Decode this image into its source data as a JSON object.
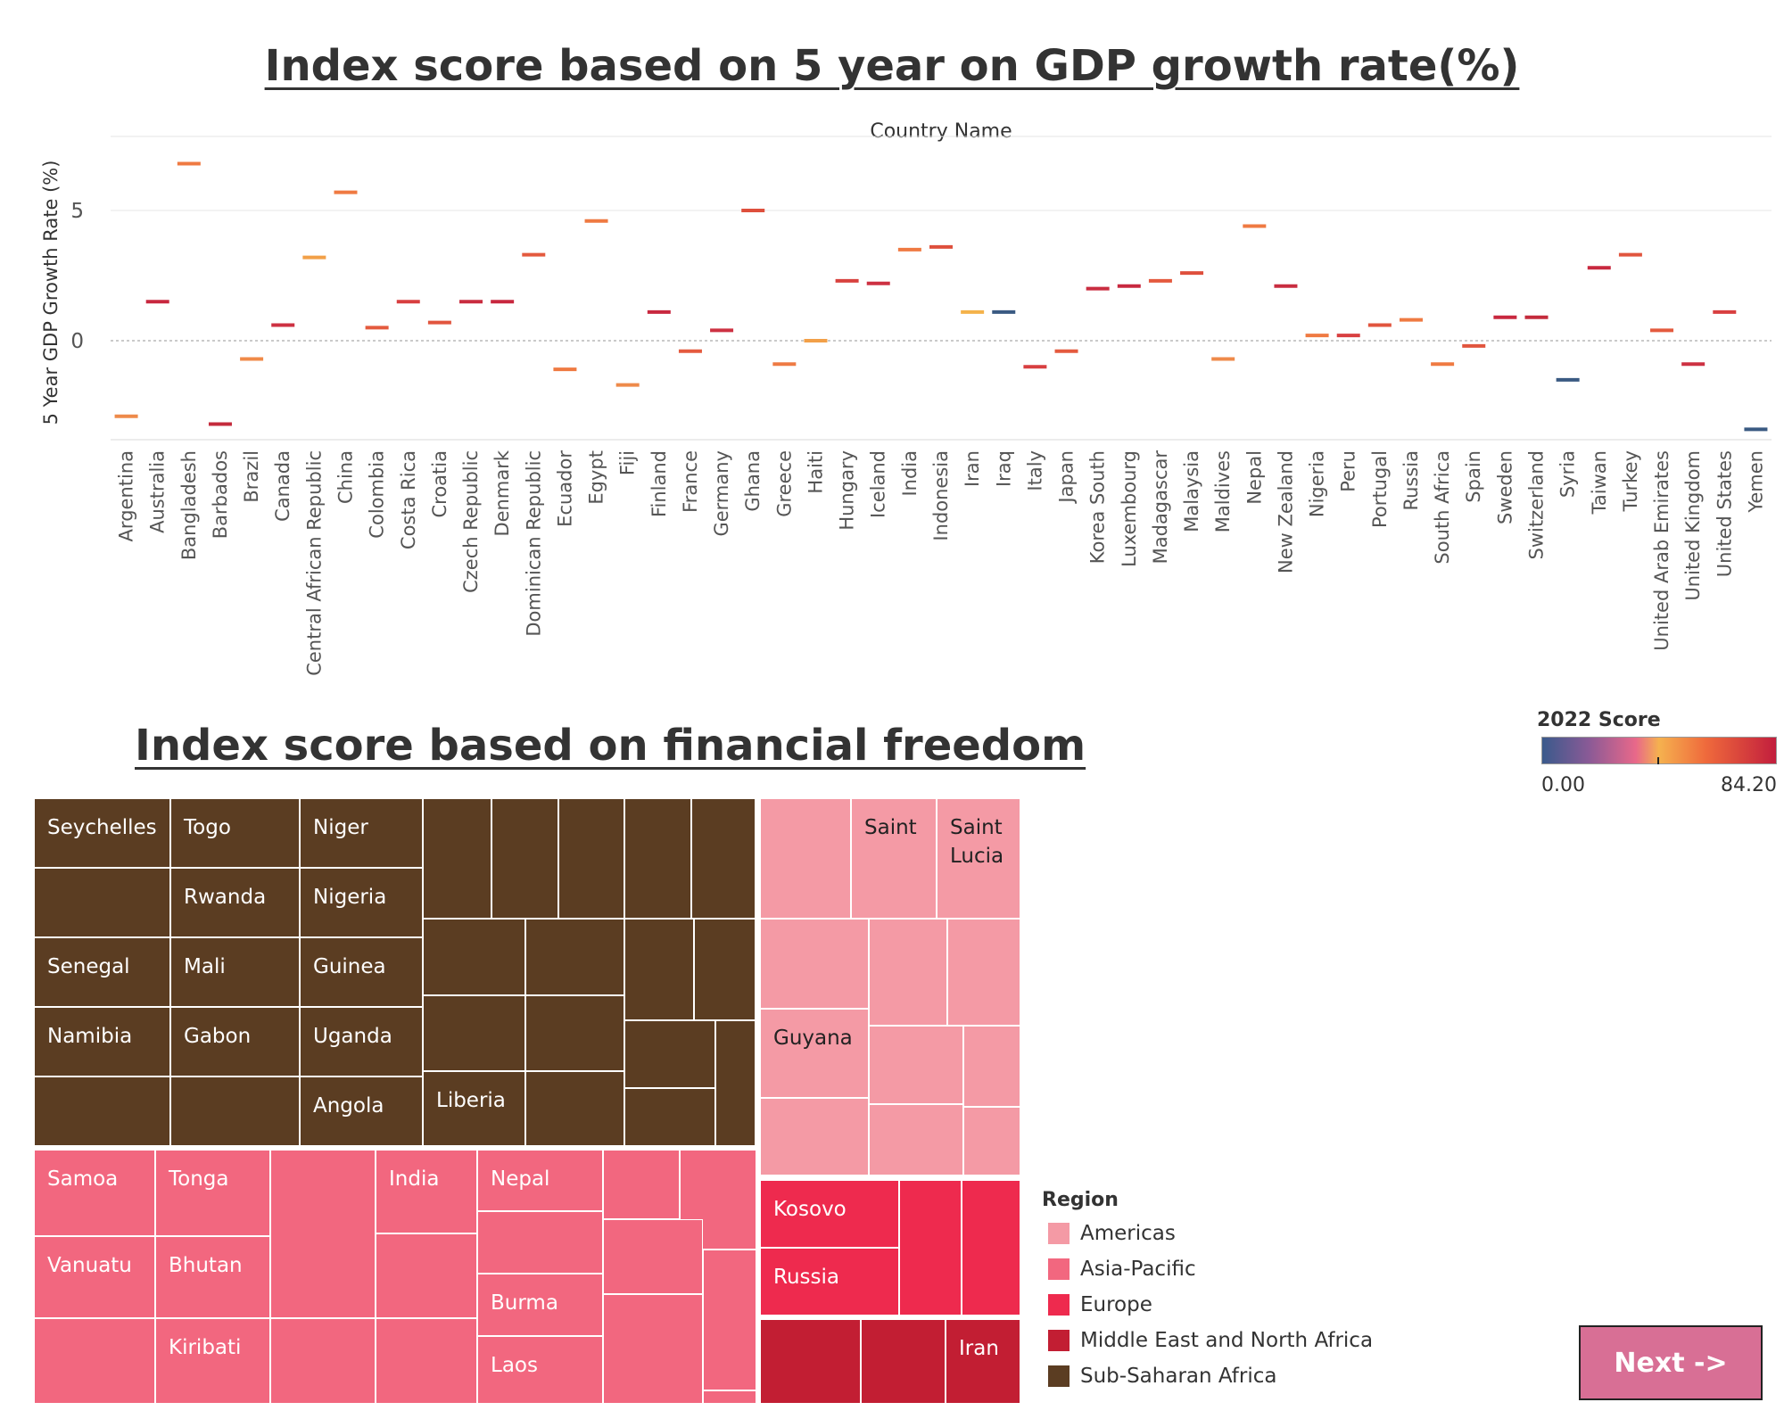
{
  "chart_data": [
    {
      "type": "scatter",
      "mark": "dash",
      "title": "Index score based on 5 year on GDP growth rate(%)",
      "header_label": "Country Name",
      "ylabel": "5 Year GDP Growth Rate (%)",
      "ylim": [
        -3.8,
        7.5
      ],
      "yticks": [
        {
          "value": 5,
          "label": "5"
        },
        {
          "value": 0,
          "label": "0"
        }
      ],
      "categories": [
        "Argentina",
        "Australia",
        "Bangladesh",
        "Barbados",
        "Brazil",
        "Canada",
        "Central African Republic",
        "China",
        "Colombia",
        "Costa Rica",
        "Croatia",
        "Czech Republic",
        "Denmark",
        "Dominican Republic",
        "Ecuador",
        "Egypt",
        "Fiji",
        "Finland",
        "France",
        "Germany",
        "Ghana",
        "Greece",
        "Haiti",
        "Hungary",
        "Iceland",
        "India",
        "Indonesia",
        "Iran",
        "Iraq",
        "Italy",
        "Japan",
        "Korea South",
        "Luxembourg",
        "Madagascar",
        "Malaysia",
        "Maldives",
        "Nepal",
        "New Zealand",
        "Nigeria",
        "Peru",
        "Portugal",
        "Russia",
        "South Africa",
        "Spain",
        "Sweden",
        "Switzerland",
        "Syria",
        "Taiwan",
        "Turkey",
        "United Arab Emirates",
        "United Kingdom",
        "United States",
        "Yemen"
      ],
      "values": [
        -2.9,
        1.5,
        6.8,
        -3.2,
        -0.7,
        0.6,
        3.2,
        5.7,
        0.5,
        1.5,
        0.7,
        1.5,
        1.5,
        3.3,
        -1.1,
        4.6,
        -1.7,
        1.1,
        -0.4,
        0.4,
        5.0,
        -0.9,
        0.0,
        2.3,
        2.2,
        3.5,
        3.6,
        1.1,
        1.1,
        -1.0,
        -0.4,
        2.0,
        2.1,
        2.3,
        2.6,
        -0.7,
        4.4,
        2.1,
        0.2,
        0.2,
        0.6,
        0.8,
        -0.9,
        -0.2,
        0.9,
        0.9,
        -1.5,
        2.8,
        3.3,
        0.4,
        -0.9,
        1.1,
        -3.4
      ],
      "colors": [
        "#ee8a4a",
        "#c8283f",
        "#ef7a42",
        "#c42b3c",
        "#f08a48",
        "#cd3142",
        "#f2a048",
        "#ef7a42",
        "#e45a3e",
        "#d83f40",
        "#e1553e",
        "#c92d40",
        "#c8283f",
        "#e45a3e",
        "#ef7a42",
        "#ef7a42",
        "#ee8a4a",
        "#c8283f",
        "#e45a3e",
        "#cd3142",
        "#de4f3c",
        "#ee7a44",
        "#f2a048",
        "#d8423f",
        "#cd3142",
        "#ef7a42",
        "#de4f3c",
        "#f4b24a",
        "#3a5a82",
        "#d83f40",
        "#e45a3e",
        "#c92d40",
        "#c8283f",
        "#e45a3e",
        "#de4f3c",
        "#ef8a4a",
        "#ef7a42",
        "#c92d40",
        "#ef7a42",
        "#d83f40",
        "#e1553e",
        "#ef7a42",
        "#ef7a42",
        "#e1553e",
        "#c8283f",
        "#c42b3c",
        "#3a5a82",
        "#c8283f",
        "#e1553e",
        "#e45a3e",
        "#cd3142",
        "#d83f40",
        "#3a5a82"
      ],
      "grid": true,
      "zero_line": "dashed"
    },
    {
      "type": "treemap",
      "title": "Index score based on financial freedom",
      "legend_title": "Region",
      "regions": [
        {
          "name": "Americas",
          "color": "#f49aa5"
        },
        {
          "name": "Asia-Pacific",
          "color": "#f2677f"
        },
        {
          "name": "Europe",
          "color": "#ee2a4e"
        },
        {
          "name": "Middle East and North Africa",
          "color": "#c21e33"
        },
        {
          "name": "Sub-Saharan Africa",
          "color": "#5b3d22"
        }
      ],
      "labeled_cells": [
        {
          "region": "Sub-Saharan Africa",
          "label": "Seychelles"
        },
        {
          "region": "Sub-Saharan Africa",
          "label": "Togo"
        },
        {
          "region": "Sub-Saharan Africa",
          "label": "Niger"
        },
        {
          "region": "Sub-Saharan Africa",
          "label": "Rwanda"
        },
        {
          "region": "Sub-Saharan Africa",
          "label": "Nigeria"
        },
        {
          "region": "Sub-Saharan Africa",
          "label": "Senegal"
        },
        {
          "region": "Sub-Saharan Africa",
          "label": "Mali"
        },
        {
          "region": "Sub-Saharan Africa",
          "label": "Guinea"
        },
        {
          "region": "Sub-Saharan Africa",
          "label": "Namibia"
        },
        {
          "region": "Sub-Saharan Africa",
          "label": "Gabon"
        },
        {
          "region": "Sub-Saharan Africa",
          "label": "Uganda"
        },
        {
          "region": "Sub-Saharan Africa",
          "label": "Angola"
        },
        {
          "region": "Sub-Saharan Africa",
          "label": "Liberia"
        },
        {
          "region": "Americas",
          "label": "Saint"
        },
        {
          "region": "Americas",
          "label": "Saint\nLucia"
        },
        {
          "region": "Americas",
          "label": "Guyana"
        },
        {
          "region": "Asia-Pacific",
          "label": "Samoa"
        },
        {
          "region": "Asia-Pacific",
          "label": "Tonga"
        },
        {
          "region": "Asia-Pacific",
          "label": "India"
        },
        {
          "region": "Asia-Pacific",
          "label": "Nepal"
        },
        {
          "region": "Asia-Pacific",
          "label": "Vanuatu"
        },
        {
          "region": "Asia-Pacific",
          "label": "Bhutan"
        },
        {
          "region": "Asia-Pacific",
          "label": "Burma"
        },
        {
          "region": "Asia-Pacific",
          "label": "Kiribati"
        },
        {
          "region": "Asia-Pacific",
          "label": "Laos"
        },
        {
          "region": "Europe",
          "label": "Kosovo"
        },
        {
          "region": "Europe",
          "label": "Russia"
        },
        {
          "region": "Middle East and North Africa",
          "label": "Iran"
        }
      ]
    }
  ],
  "colorbar": {
    "title": "2022 Score",
    "min_label": "0.00",
    "max_label": "84.20"
  },
  "next_button": {
    "label": "Next ->"
  }
}
